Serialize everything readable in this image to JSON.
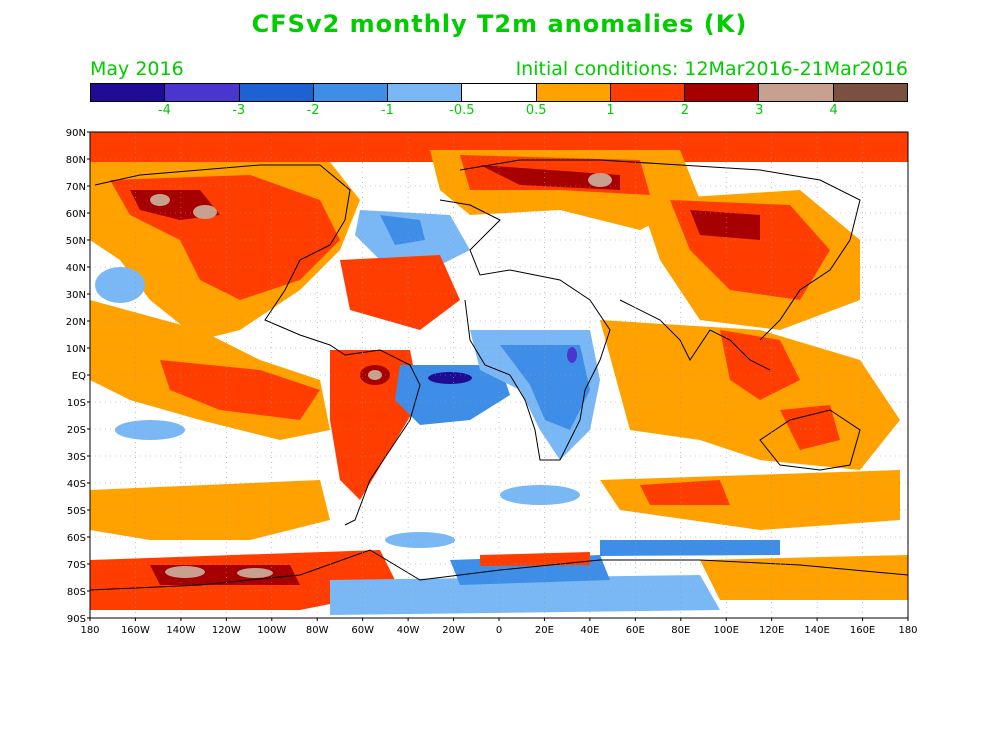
{
  "title": "CFSv2 monthly T2m anomalies (K)",
  "month": "May 2016",
  "initial_conditions": "Initial conditions: 12Mar2016-21Mar2016",
  "text_color": "#00cc00",
  "colorbar": {
    "colors": [
      "#1f0b94",
      "#4a36cf",
      "#1d62d3",
      "#3e8ee8",
      "#7ab8f5",
      "#ffffff",
      "#ffa200",
      "#ff3d00",
      "#a60000",
      "#c8a090",
      "#7a5040"
    ],
    "labels": [
      "-4",
      "-3",
      "-2",
      "-1",
      "-0.5",
      "0.5",
      "1",
      "2",
      "3",
      "4"
    ]
  },
  "lat_labels": [
    "90N",
    "80N",
    "70N",
    "60N",
    "50N",
    "40N",
    "30N",
    "20N",
    "10N",
    "EQ",
    "10S",
    "20S",
    "30S",
    "40S",
    "50S",
    "60S",
    "70S",
    "80S",
    "90S"
  ],
  "lon_labels": [
    "180",
    "160W",
    "140W",
    "120W",
    "100W",
    "80W",
    "60W",
    "40W",
    "20W",
    "0",
    "20E",
    "40E",
    "60E",
    "80E",
    "100E",
    "120E",
    "140E",
    "160E",
    "180"
  ]
}
